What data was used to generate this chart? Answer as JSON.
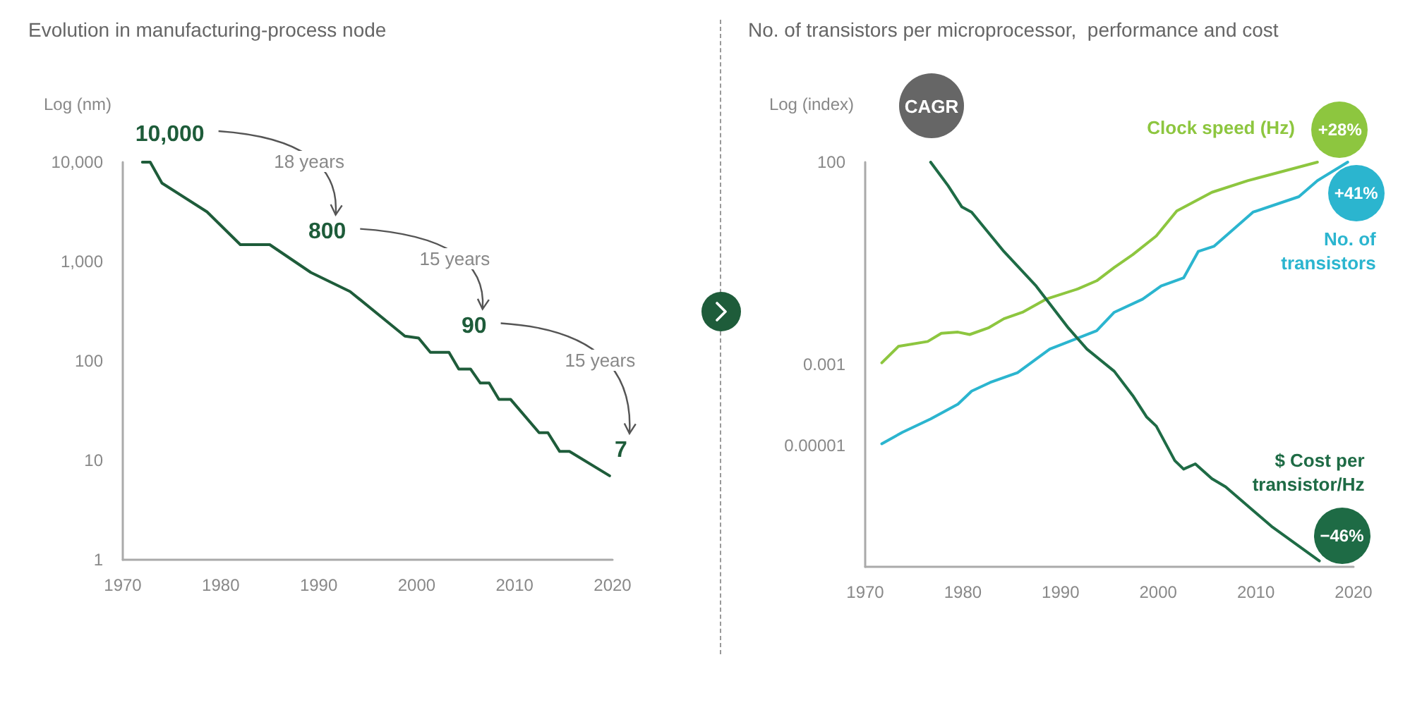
{
  "chart_data": [
    {
      "type": "line",
      "title": "Evolution in manufacturing-process node",
      "ylabel": "Log (nm)",
      "log": "y",
      "grid": false,
      "legend": false,
      "x": [
        1972,
        1972.8,
        1974,
        1978.6,
        1982,
        1985,
        1989.2,
        1993.2,
        1998.8,
        2000.2,
        2001.4,
        2003.3,
        2004.3,
        2005.5,
        2006.5,
        2007.4,
        2008.4,
        2009.6,
        2012.5,
        2013.4,
        2014.6,
        2015.6,
        2019.7
      ],
      "series": [
        {
          "color": "#1e5c3a",
          "values": [
            10000,
            10000,
            6150,
            3160,
            1480,
            1480,
            776,
            500,
            178,
            170,
            122,
            122,
            83,
            83,
            60,
            60,
            41,
            41,
            19,
            19,
            12.3,
            12.3,
            7
          ]
        }
      ],
      "xlim": [
        1970,
        2020
      ],
      "xticks": [
        1970,
        1980,
        1990,
        2000,
        2010,
        2020
      ],
      "ylim": [
        1,
        10000
      ],
      "yticks": [
        1,
        10,
        100,
        {
          "value": 1000,
          "label": "1,000"
        },
        {
          "value": 10000,
          "label": "10,000"
        }
      ],
      "annotations": [
        {
          "text": "10,000",
          "x": 1972,
          "y": 10000
        },
        {
          "text": "800",
          "x": 1990,
          "y": 800
        },
        {
          "text": "90",
          "x": 2005,
          "y": 90
        },
        {
          "text": "7",
          "x": 2020,
          "y": 7
        },
        "18 years",
        "15 years",
        "15 years"
      ]
    },
    {
      "type": "line",
      "title": "No. of transistors per microprocessor,  performance and cost",
      "ylabel": "Log (index)",
      "log": "y",
      "grid": false,
      "legend": false,
      "series": [
        {
          "name": "Clock speed (Hz)",
          "color": "#8dc63f",
          "x": [
            1971.7,
            1973.4,
            1976.4,
            1977.8,
            1979.5,
            1980.7,
            1982.6,
            1984.2,
            1986.1,
            1988.5,
            1991.8,
            1993.7,
            1995.5,
            1997.4,
            1999.8,
            2001.9,
            2005.5,
            2009.2,
            2016.3
          ],
          "values": [
            0.0011,
            0.0028,
            0.0037,
            0.0059,
            0.0063,
            0.0055,
            0.008,
            0.0135,
            0.0195,
            0.041,
            0.074,
            0.117,
            0.25,
            0.52,
            1.5,
            6.2,
            18,
            35,
            100
          ]
        },
        {
          "name": "No. of transistors",
          "color": "#2bb5cf",
          "x": [
            1971.7,
            1973.8,
            1976.7,
            1979.5,
            1980.9,
            1982.8,
            1985.6,
            1988.9,
            1993.7,
            1995.5,
            1998.4,
            2000.3,
            2002.6,
            2004.1,
            2005.7,
            2009.7,
            2014.4,
            2016.3,
            2019.4
          ],
          "values": [
            1.1e-05,
            2.1e-05,
            4.5e-05,
            0.000105,
            0.00022,
            0.00036,
            0.00063,
            0.0024,
            0.0068,
            0.0195,
            0.041,
            0.087,
            0.138,
            0.62,
            0.83,
            5.8,
            14,
            35,
            100
          ]
        },
        {
          "name": "$ Cost per transistor/Hz",
          "color": "#1e6b45",
          "x": [
            1976.7,
            1978.5,
            1979.9,
            1980.9,
            1984.2,
            1987.5,
            1990.8,
            1992.7,
            1995.5,
            1997.4,
            1998.8,
            1999.8,
            2001.7,
            2002.6,
            2003.8,
            2005.5,
            2006.9,
            2011.6,
            2016.5
          ],
          "values": [
            100,
            26,
            7.8,
            5.8,
            0.62,
            0.087,
            0.008,
            0.0024,
            0.00068,
            0.00017,
            5.1e-05,
            3e-05,
            4.2e-06,
            2.6e-06,
            3.5e-06,
            1.5e-06,
            9.5e-07,
            1e-07,
            1.4e-08
          ]
        }
      ],
      "xlim": [
        1970,
        2020
      ],
      "xticks": [
        1970,
        1980,
        1990,
        2000,
        2010,
        2020
      ],
      "ylim": [
        1e-08,
        100
      ],
      "yticks": [
        100,
        0.001,
        {
          "value": 1e-05,
          "label": "0.00001"
        }
      ],
      "annotations": [
        "CAGR",
        {
          "text": "+28%",
          "x": 2016.3,
          "y": 100
        },
        {
          "text": "+41%",
          "x": 2019.4,
          "y": 100
        },
        {
          "text": "−46%",
          "x": 2016.5,
          "y": 1.4e-08
        }
      ]
    }
  ]
}
